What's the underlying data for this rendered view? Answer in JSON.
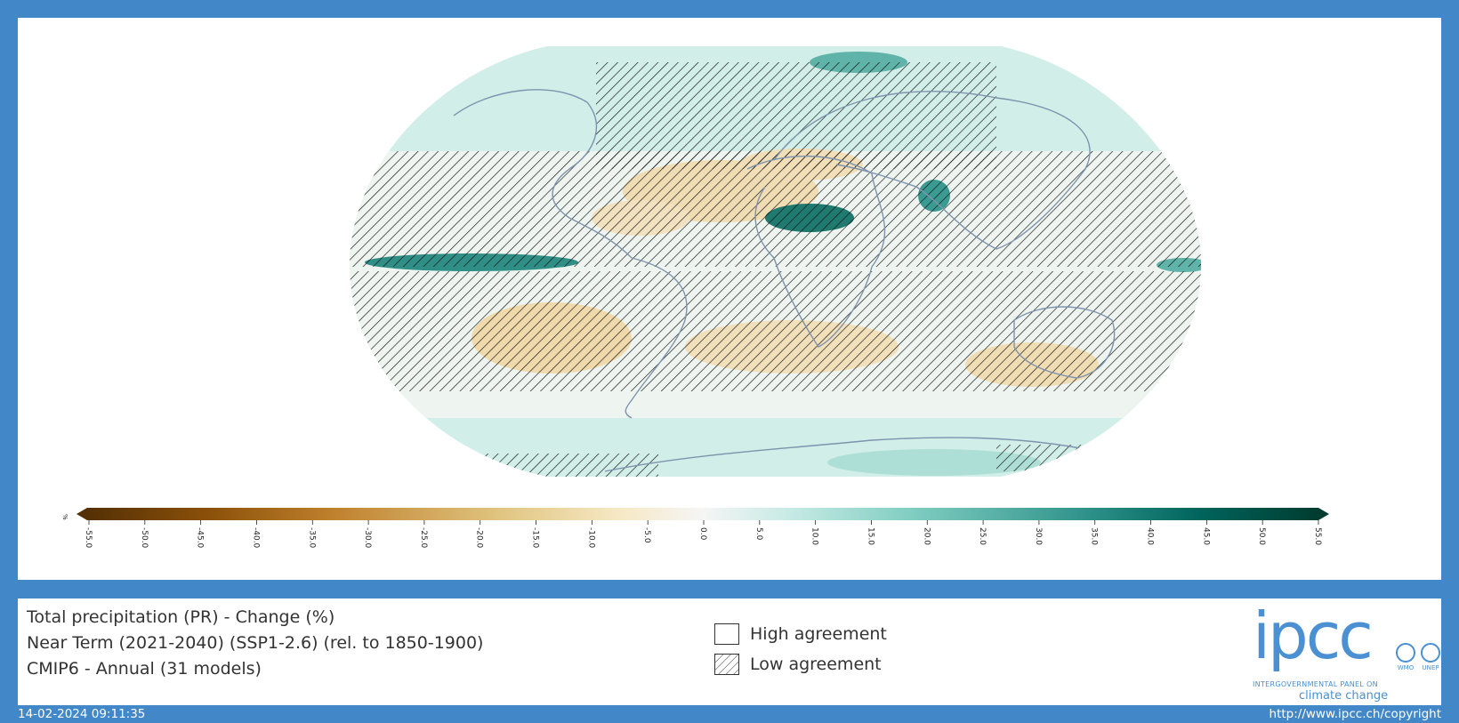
{
  "map": {
    "colorbar_unit": "%",
    "colorbar_ticks": [
      "-55.0",
      "-50.0",
      "-45.0",
      "-40.0",
      "-35.0",
      "-30.0",
      "-25.0",
      "-20.0",
      "-15.0",
      "-10.0",
      "-5.0",
      "0.0",
      "5.0",
      "10.0",
      "15.0",
      "20.0",
      "25.0",
      "30.0",
      "35.0",
      "40.0",
      "45.0",
      "50.0",
      "55.0"
    ],
    "colormap": [
      "#543005",
      "#8c510a",
      "#bf812d",
      "#dfc27d",
      "#f6e8c3",
      "#f5f5f5",
      "#c7eae5",
      "#80cdc1",
      "#35978f",
      "#01665e",
      "#003c30"
    ],
    "ocean_tint": "#cdece6",
    "hatch_color": "#111111",
    "coast_color": "#7e93ad"
  },
  "info": {
    "title_line1": "Total precipitation (PR) - Change (%)",
    "title_line2": "Near Term (2021-2040) (SSP1-2.6) (rel. to 1850-1900)",
    "title_line3": "CMIP6 - Annual (31 models)"
  },
  "legend": {
    "high_label": "High agreement",
    "low_label": "Low agreement"
  },
  "logo": {
    "word": "ipcc",
    "sub1": "INTERGOVERNMENTAL PANEL ON",
    "sub2": "climate change",
    "org1": "WMO",
    "org2": "UNEP"
  },
  "footer": {
    "timestamp": "14-02-2024 09:11:35",
    "url": "http://www.ipcc.ch/copyright"
  },
  "frame_color": "#4287c8"
}
